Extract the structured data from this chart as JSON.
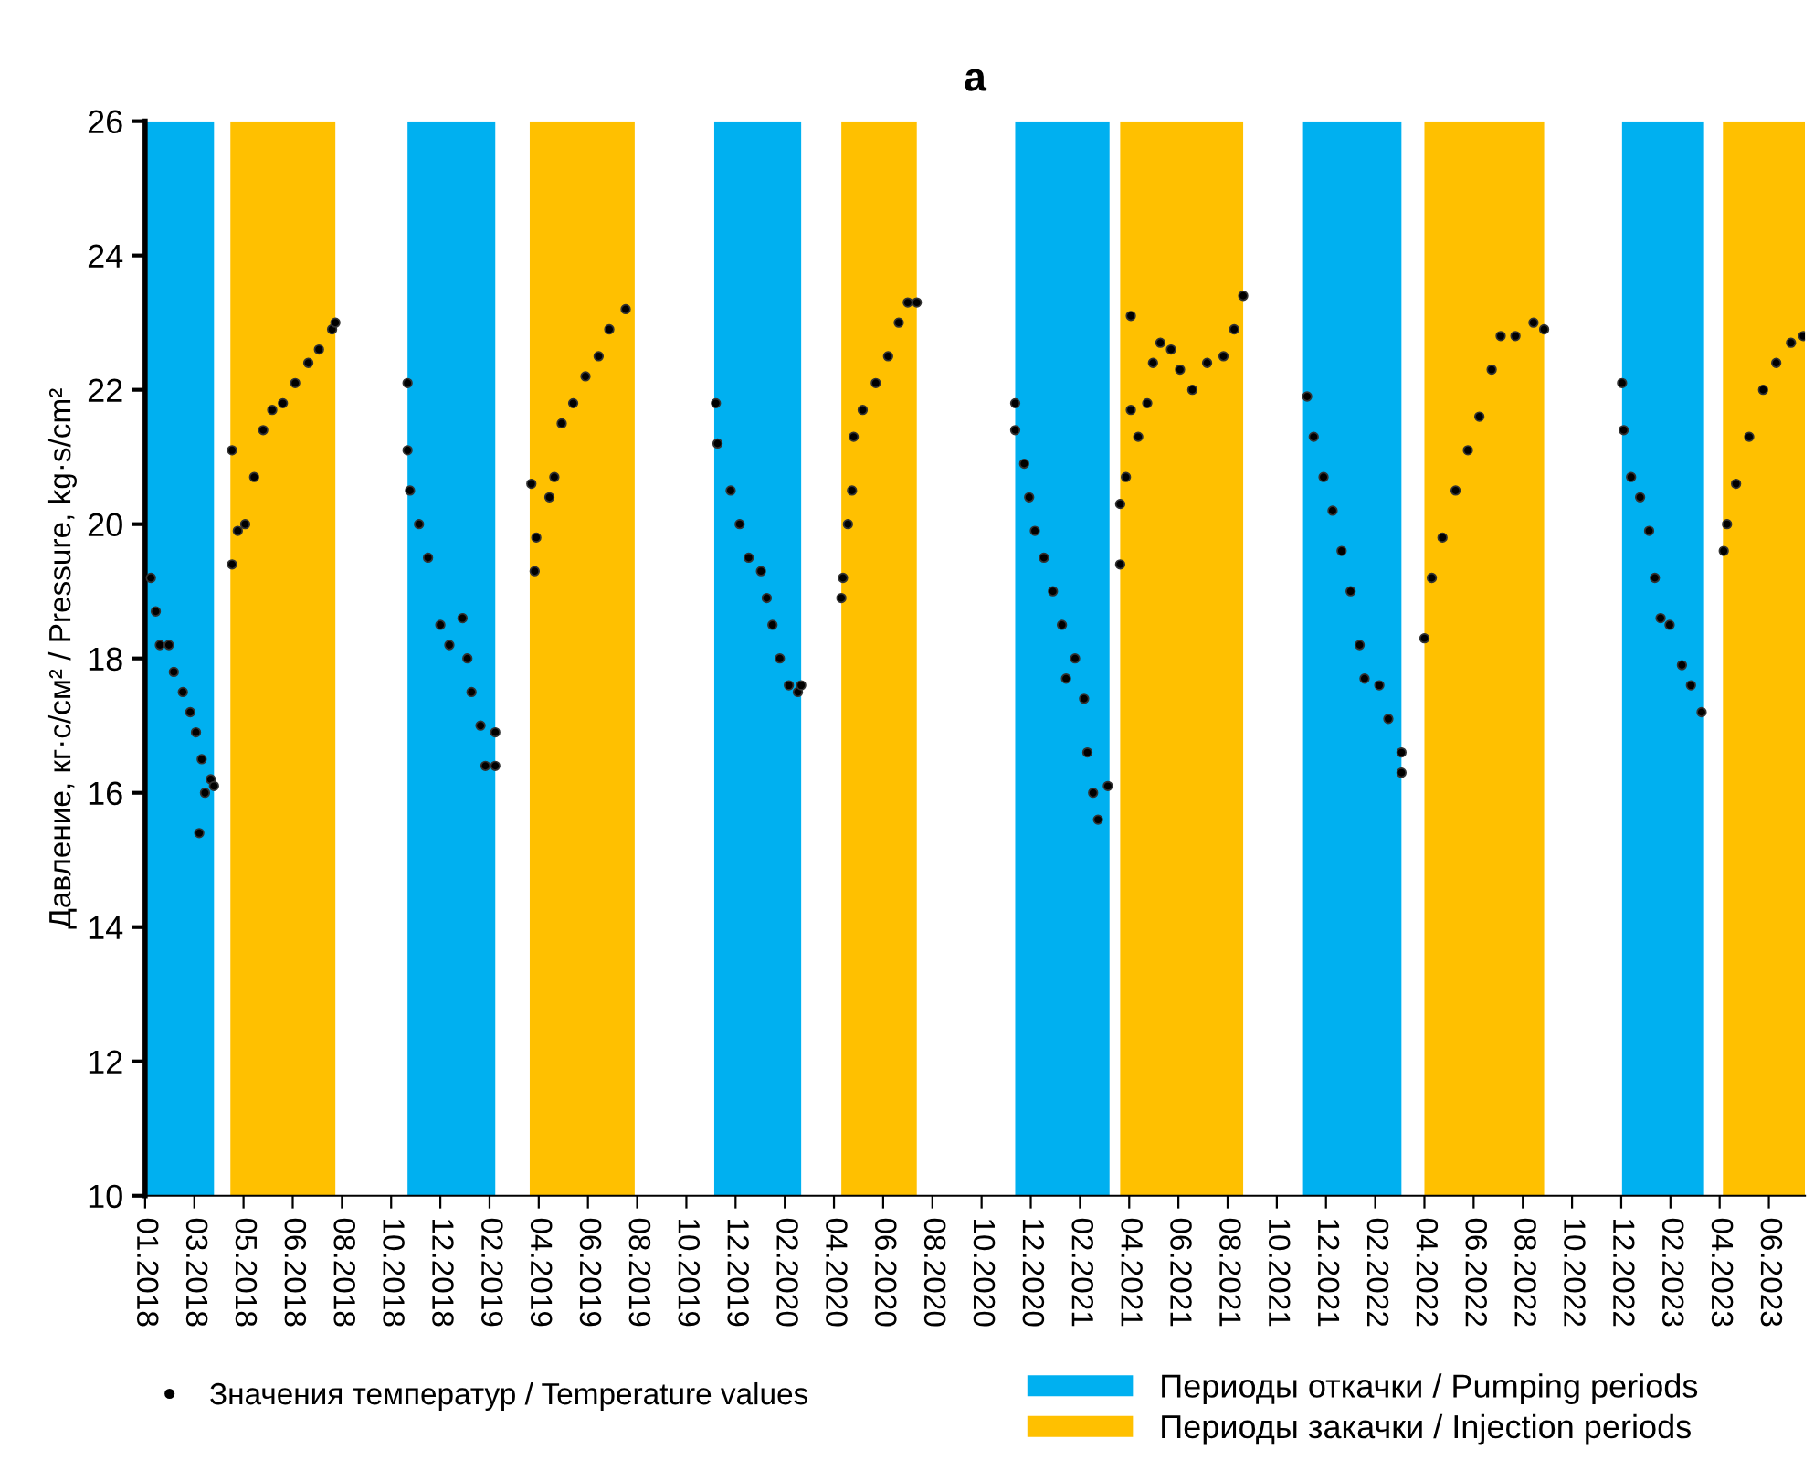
{
  "chart_data": {
    "type": "scatter",
    "title": "a",
    "ylabel": "Давление, кг·с/см² / Pressure, kg·s/cm²",
    "xlim": [
      "2018-01-01",
      "2023-07-18"
    ],
    "xticks": [
      {
        "value": "2018-01-01",
        "label": "01.2018"
      },
      {
        "value": "2018-03-02",
        "label": "03.2018"
      },
      {
        "value": "2018-05-01",
        "label": "05.2018"
      },
      {
        "value": "2018-06-30",
        "label": "06.2018"
      },
      {
        "value": "2018-08-29",
        "label": "08.2018"
      },
      {
        "value": "2018-10-28",
        "label": "10.2018"
      },
      {
        "value": "2018-12-27",
        "label": "12.2018"
      },
      {
        "value": "2019-02-25",
        "label": "02.2019"
      },
      {
        "value": "2019-04-26",
        "label": "04.2019"
      },
      {
        "value": "2019-06-25",
        "label": "06.2019"
      },
      {
        "value": "2019-08-24",
        "label": "08.2019"
      },
      {
        "value": "2019-10-23",
        "label": "10.2019"
      },
      {
        "value": "2019-12-22",
        "label": "12.2019"
      },
      {
        "value": "2020-02-20",
        "label": "02.2020"
      },
      {
        "value": "2020-04-20",
        "label": "04.2020"
      },
      {
        "value": "2020-06-19",
        "label": "06.2020"
      },
      {
        "value": "2020-08-18",
        "label": "08.2020"
      },
      {
        "value": "2020-10-17",
        "label": "10.2020"
      },
      {
        "value": "2020-12-16",
        "label": "12.2020"
      },
      {
        "value": "2021-02-14",
        "label": "02.2021"
      },
      {
        "value": "2021-04-15",
        "label": "04.2021"
      },
      {
        "value": "2021-06-14",
        "label": "06.2021"
      },
      {
        "value": "2021-08-13",
        "label": "08.2021"
      },
      {
        "value": "2021-10-12",
        "label": "10.2021"
      },
      {
        "value": "2021-12-11",
        "label": "12.2021"
      },
      {
        "value": "2022-02-09",
        "label": "02.2022"
      },
      {
        "value": "2022-04-10",
        "label": "04.2022"
      },
      {
        "value": "2022-06-09",
        "label": "06.2022"
      },
      {
        "value": "2022-08-08",
        "label": "08.2022"
      },
      {
        "value": "2022-10-07",
        "label": "10.2022"
      },
      {
        "value": "2022-12-06",
        "label": "12.2022"
      },
      {
        "value": "2023-02-04",
        "label": "02.2023"
      },
      {
        "value": "2023-04-05",
        "label": "04.2023"
      },
      {
        "value": "2023-06-04",
        "label": "06.2023"
      }
    ],
    "ylim": [
      10,
      26
    ],
    "yticks": [
      10,
      12,
      14,
      16,
      18,
      20,
      22,
      24,
      26
    ],
    "marker": "circle",
    "legend": "bottom",
    "grid": false,
    "bands": [
      {
        "axis": "x",
        "from": "2018-01-01",
        "to": "2018-03-26",
        "label": "Периоды откачки / Pumping periods",
        "color": "#00b0f0"
      },
      {
        "axis": "x",
        "from": "2018-04-15",
        "to": "2018-08-21",
        "label": "Периоды закачки / Injection periods",
        "color": "#ffc000"
      },
      {
        "axis": "x",
        "from": "2018-11-17",
        "to": "2019-03-04",
        "color": "#00b0f0"
      },
      {
        "axis": "x",
        "from": "2019-04-15",
        "to": "2019-08-21",
        "color": "#ffc000"
      },
      {
        "axis": "x",
        "from": "2019-11-26",
        "to": "2020-03-11",
        "color": "#00b0f0"
      },
      {
        "axis": "x",
        "from": "2020-04-29",
        "to": "2020-07-30",
        "color": "#ffc000"
      },
      {
        "axis": "x",
        "from": "2020-11-27",
        "to": "2021-03-22",
        "color": "#00b0f0"
      },
      {
        "axis": "x",
        "from": "2021-04-04",
        "to": "2021-09-01",
        "color": "#ffc000"
      },
      {
        "axis": "x",
        "from": "2021-11-13",
        "to": "2022-03-13",
        "color": "#00b0f0"
      },
      {
        "axis": "x",
        "from": "2022-04-10",
        "to": "2022-09-03",
        "color": "#ffc000"
      },
      {
        "axis": "x",
        "from": "2022-12-07",
        "to": "2023-03-17",
        "color": "#00b0f0"
      },
      {
        "axis": "x",
        "from": "2023-04-09",
        "to": "2023-07-18",
        "color": "#ffc000"
      }
    ],
    "series": [
      {
        "name": "Значения температур / Temperature values",
        "color": "#000000",
        "x": [
          "2018-01-08",
          "2018-01-14",
          "2018-01-19",
          "2018-01-30",
          "2018-02-05",
          "2018-02-16",
          "2018-02-25",
          "2018-03-04",
          "2018-03-08",
          "2018-03-11",
          "2018-03-15",
          "2018-03-22",
          "2018-03-26",
          "2018-04-17",
          "2018-04-17",
          "2018-04-24",
          "2018-05-03",
          "2018-05-14",
          "2018-05-25",
          "2018-06-05",
          "2018-06-18",
          "2018-07-03",
          "2018-07-19",
          "2018-08-01",
          "2018-08-17",
          "2018-08-21",
          "2018-11-17",
          "2018-11-17",
          "2018-11-20",
          "2018-12-01",
          "2018-12-12",
          "2018-12-27",
          "2019-01-07",
          "2019-01-23",
          "2019-01-29",
          "2019-02-03",
          "2019-02-14",
          "2019-02-20",
          "2019-03-04",
          "2019-03-04",
          "2019-04-17",
          "2019-04-21",
          "2019-04-23",
          "2019-05-09",
          "2019-05-15",
          "2019-05-24",
          "2019-06-07",
          "2019-06-22",
          "2019-07-08",
          "2019-07-21",
          "2019-08-10",
          "2019-11-28",
          "2019-11-30",
          "2019-12-16",
          "2019-12-27",
          "2020-01-07",
          "2020-01-22",
          "2020-01-29",
          "2020-02-05",
          "2020-02-14",
          "2020-02-25",
          "2020-03-07",
          "2020-03-11",
          "2020-04-29",
          "2020-05-01",
          "2020-05-07",
          "2020-05-12",
          "2020-05-14",
          "2020-05-25",
          "2020-06-10",
          "2020-06-25",
          "2020-07-08",
          "2020-07-19",
          "2020-07-30",
          "2020-11-27",
          "2020-11-27",
          "2020-12-08",
          "2020-12-14",
          "2020-12-21",
          "2021-01-01",
          "2021-01-12",
          "2021-01-23",
          "2021-01-28",
          "2021-02-08",
          "2021-02-19",
          "2021-02-23",
          "2021-03-02",
          "2021-03-08",
          "2021-03-20",
          "2021-04-04",
          "2021-04-04",
          "2021-04-11",
          "2021-04-17",
          "2021-04-17",
          "2021-04-26",
          "2021-05-07",
          "2021-05-14",
          "2021-05-23",
          "2021-06-05",
          "2021-06-16",
          "2021-07-01",
          "2021-07-19",
          "2021-08-08",
          "2021-08-21",
          "2021-09-01",
          "2021-11-18",
          "2021-11-26",
          "2021-12-08",
          "2021-12-19",
          "2021-12-30",
          "2022-01-10",
          "2022-01-21",
          "2022-01-27",
          "2022-02-14",
          "2022-02-25",
          "2022-03-13",
          "2022-03-13",
          "2022-04-10",
          "2022-04-19",
          "2022-05-02",
          "2022-05-18",
          "2022-06-02",
          "2022-06-16",
          "2022-07-01",
          "2022-07-12",
          "2022-07-30",
          "2022-08-21",
          "2022-09-03",
          "2022-12-07",
          "2022-12-09",
          "2022-12-18",
          "2022-12-29",
          "2023-01-09",
          "2023-01-16",
          "2023-01-23",
          "2023-02-03",
          "2023-02-18",
          "2023-03-01",
          "2023-03-14",
          "2023-04-10",
          "2023-04-14",
          "2023-04-25",
          "2023-05-11",
          "2023-05-28",
          "2023-06-13",
          "2023-07-01",
          "2023-07-16"
        ],
        "values": [
          19.2,
          18.7,
          18.2,
          18.2,
          17.8,
          17.5,
          17.2,
          16.9,
          15.4,
          16.5,
          16.0,
          16.2,
          16.1,
          21.1,
          19.4,
          19.9,
          20.0,
          20.7,
          21.4,
          21.7,
          21.8,
          22.1,
          22.4,
          22.6,
          22.9,
          23.0,
          22.1,
          21.1,
          20.5,
          20.0,
          19.5,
          18.5,
          18.2,
          18.6,
          18.0,
          17.5,
          17.0,
          16.4,
          16.9,
          16.4,
          20.6,
          19.3,
          19.8,
          20.4,
          20.7,
          21.5,
          21.8,
          22.2,
          22.5,
          22.9,
          23.2,
          21.8,
          21.2,
          20.5,
          20.0,
          19.5,
          19.3,
          18.9,
          18.5,
          18.0,
          17.6,
          17.5,
          17.6,
          18.9,
          19.2,
          20.0,
          20.5,
          21.3,
          21.7,
          22.1,
          22.5,
          23.0,
          23.3,
          23.3,
          21.8,
          21.4,
          20.9,
          20.4,
          19.9,
          19.5,
          19.0,
          18.5,
          17.7,
          18.0,
          17.4,
          16.6,
          16.0,
          15.6,
          16.1,
          19.4,
          20.3,
          20.7,
          21.7,
          23.1,
          21.3,
          21.8,
          22.4,
          22.7,
          22.6,
          22.3,
          22.0,
          22.4,
          22.5,
          22.9,
          23.4,
          21.9,
          21.3,
          20.7,
          20.2,
          19.6,
          19.0,
          18.2,
          17.7,
          17.6,
          17.1,
          16.6,
          16.3,
          18.3,
          19.2,
          19.8,
          20.5,
          21.1,
          21.6,
          22.3,
          22.8,
          22.8,
          23.0,
          22.9,
          22.1,
          21.4,
          20.7,
          20.4,
          19.9,
          19.2,
          18.6,
          18.5,
          17.9,
          17.6,
          17.2,
          19.6,
          20.0,
          20.6,
          21.3,
          22.0,
          22.4,
          22.7,
          22.8
        ]
      }
    ]
  }
}
